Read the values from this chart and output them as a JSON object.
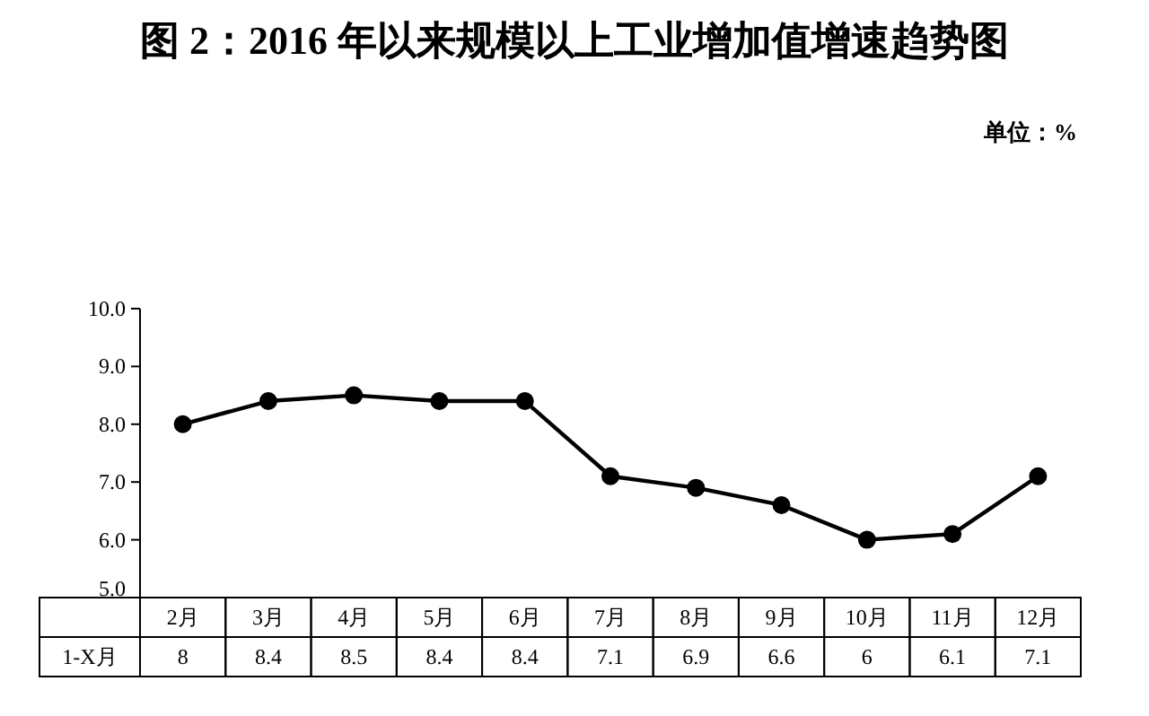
{
  "chart_data": {
    "type": "line",
    "title": "图 2：2016 年以来规模以上工业增加值增速趋势图",
    "annotations": [
      "单位：%"
    ],
    "categories": [
      "2月",
      "3月",
      "4月",
      "5月",
      "6月",
      "7月",
      "8月",
      "9月",
      "10月",
      "11月",
      "12月"
    ],
    "series": [
      {
        "name": "1-X月",
        "color": "#000000",
        "values": [
          8,
          8.4,
          8.5,
          8.4,
          8.4,
          7.1,
          6.9,
          6.6,
          6,
          6.1,
          7.1
        ]
      }
    ],
    "ylim": [
      5,
      10
    ],
    "yticks": [
      {
        "value": 5,
        "label": "5.0"
      },
      {
        "value": 6,
        "label": "6.0"
      },
      {
        "value": 7,
        "label": "7.0"
      },
      {
        "value": 8,
        "label": "8.0"
      },
      {
        "value": 9,
        "label": "9.0"
      },
      {
        "value": 10,
        "label": "10.0"
      }
    ],
    "marker": "circle",
    "line_style": "solid",
    "grid": false,
    "data_labels": true
  }
}
